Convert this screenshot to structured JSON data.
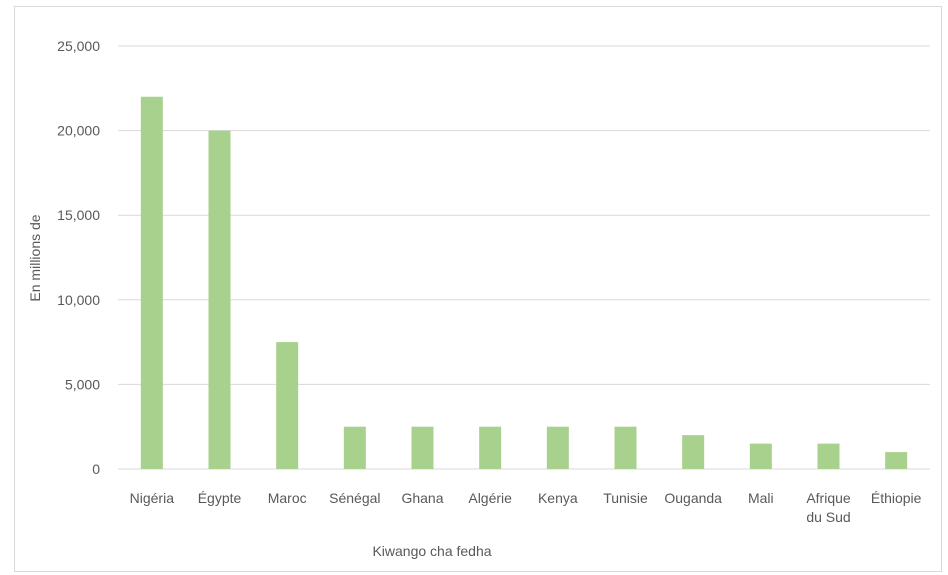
{
  "chart_data": {
    "type": "bar",
    "title": "",
    "xlabel": "Kiwango cha fedha",
    "ylabel": "En millions de",
    "categories": [
      [
        "Nigéria"
      ],
      [
        "Égypte"
      ],
      [
        "Maroc"
      ],
      [
        "Sénégal"
      ],
      [
        "Ghana"
      ],
      [
        "Algérie"
      ],
      [
        "Kenya"
      ],
      [
        "Tunisie"
      ],
      [
        "Ouganda"
      ],
      [
        "Mali"
      ],
      [
        "Afrique",
        "du Sud"
      ],
      [
        "Éthiopie"
      ]
    ],
    "values": [
      22000,
      20000,
      7500,
      2500,
      2500,
      2500,
      2500,
      2500,
      2000,
      1500,
      1500,
      1000
    ],
    "ylim": [
      0,
      25000
    ],
    "yticks": [
      {
        "value": 0,
        "label": "0"
      },
      {
        "value": 5000,
        "label": "5,000"
      },
      {
        "value": 10000,
        "label": "10,000"
      },
      {
        "value": 15000,
        "label": "15,000"
      },
      {
        "value": 20000,
        "label": "20,000"
      },
      {
        "value": 25000,
        "label": "25,000"
      }
    ],
    "grid": true,
    "legend": "none",
    "colors": {
      "bar": "#a9d18e",
      "grid": "#d9d9d9",
      "text": "#595959"
    }
  }
}
